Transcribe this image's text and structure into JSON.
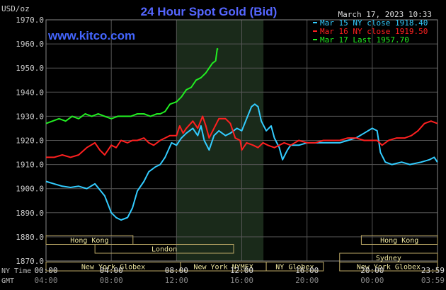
{
  "chart_data": {
    "type": "line",
    "title": "24 Hour Spot Gold (Bid)",
    "watermark": "www.kitco.com",
    "date": "March 17, 2023 10:33",
    "ylabel": "USD/oz",
    "ylim": [
      1870,
      1970
    ],
    "yticks": [
      "1970.0",
      "1960.0",
      "1950.0",
      "1940.0",
      "1930.0",
      "1920.0",
      "1910.0",
      "1900.0",
      "1890.0",
      "1880.0",
      "1870.0"
    ],
    "xlim": [
      0,
      24
    ],
    "grid": true,
    "legend_position": "top-right",
    "x_axes": [
      {
        "name": "NY Time",
        "ticks": [
          "00:00",
          "04:00",
          "08:00",
          "12:00",
          "16:00",
          "20:00",
          "23:59"
        ]
      },
      {
        "name": "GMT",
        "ticks": [
          "04:00",
          "08:00",
          "12:00",
          "16:00",
          "20:00",
          "00:00",
          "03:59"
        ]
      }
    ],
    "shaded_region_hours": [
      8,
      13.33
    ],
    "sessions": [
      {
        "label": "Hong Kong",
        "start": 0,
        "end": 5.33,
        "row": 0
      },
      {
        "label": "Hong Kong",
        "start": 19.33,
        "end": 24,
        "row": 0
      },
      {
        "label": "London",
        "start": 3,
        "end": 11.5,
        "row": 1
      },
      {
        "label": "Sydney",
        "start": 18,
        "end": 24,
        "row": 2
      },
      {
        "label": "New York Globex",
        "start": 0,
        "end": 8.25,
        "row": 3
      },
      {
        "label": "New York NYMEX",
        "start": 8.25,
        "end": 13.5,
        "row": 3
      },
      {
        "label": "NY Globex",
        "start": 13.5,
        "end": 17,
        "row": 3
      },
      {
        "label": "New York Globex",
        "start": 18,
        "end": 24,
        "row": 3
      }
    ],
    "series": [
      {
        "name": "Mar 15 NY close 1918.40",
        "color": "#33ccff",
        "points": [
          [
            0,
            1903
          ],
          [
            0.5,
            1902
          ],
          [
            1,
            1901
          ],
          [
            1.5,
            1900.5
          ],
          [
            2,
            1901
          ],
          [
            2.5,
            1900
          ],
          [
            3,
            1902
          ],
          [
            3.3,
            1899.5
          ],
          [
            3.6,
            1897
          ],
          [
            4,
            1890
          ],
          [
            4.3,
            1888
          ],
          [
            4.6,
            1887
          ],
          [
            5,
            1888
          ],
          [
            5.3,
            1892
          ],
          [
            5.6,
            1899
          ],
          [
            6,
            1903
          ],
          [
            6.3,
            1907
          ],
          [
            6.7,
            1909
          ],
          [
            7,
            1910
          ],
          [
            7.3,
            1913
          ],
          [
            7.7,
            1919
          ],
          [
            8,
            1918
          ],
          [
            8.3,
            1921
          ],
          [
            8.6,
            1923
          ],
          [
            9,
            1925
          ],
          [
            9.3,
            1922
          ],
          [
            9.5,
            1926
          ],
          [
            9.7,
            1920
          ],
          [
            10,
            1916
          ],
          [
            10.3,
            1922
          ],
          [
            10.6,
            1924
          ],
          [
            11,
            1922
          ],
          [
            11.3,
            1923
          ],
          [
            11.7,
            1925
          ],
          [
            12,
            1924
          ],
          [
            12.3,
            1929
          ],
          [
            12.6,
            1934
          ],
          [
            12.8,
            1935
          ],
          [
            13,
            1934
          ],
          [
            13.2,
            1928
          ],
          [
            13.5,
            1924
          ],
          [
            13.8,
            1926
          ],
          [
            14,
            1921
          ],
          [
            14.3,
            1917
          ],
          [
            14.5,
            1912
          ],
          [
            14.8,
            1916
          ],
          [
            15,
            1918
          ],
          [
            15.5,
            1918
          ],
          [
            16,
            1919
          ],
          [
            16.5,
            1919
          ],
          [
            17,
            1919
          ],
          [
            17.5,
            1919
          ],
          [
            18,
            1919
          ],
          [
            18.5,
            1920
          ],
          [
            19,
            1921
          ],
          [
            19.5,
            1923
          ],
          [
            20,
            1925
          ],
          [
            20.3,
            1924
          ],
          [
            20.5,
            1915
          ],
          [
            20.8,
            1911
          ],
          [
            21.2,
            1910
          ],
          [
            21.8,
            1911
          ],
          [
            22.3,
            1910
          ],
          [
            23,
            1911
          ],
          [
            23.5,
            1912
          ],
          [
            23.8,
            1913
          ],
          [
            23.99,
            1911
          ]
        ]
      },
      {
        "name": "Mar 16 NY close 1919.50",
        "color": "#ff2020",
        "points": [
          [
            0,
            1913
          ],
          [
            0.5,
            1913
          ],
          [
            1,
            1914
          ],
          [
            1.5,
            1913
          ],
          [
            2,
            1914
          ],
          [
            2.5,
            1917
          ],
          [
            3,
            1919
          ],
          [
            3.3,
            1916
          ],
          [
            3.6,
            1914
          ],
          [
            4,
            1918
          ],
          [
            4.3,
            1917
          ],
          [
            4.6,
            1920
          ],
          [
            5,
            1919
          ],
          [
            5.3,
            1920
          ],
          [
            5.6,
            1920
          ],
          [
            6,
            1921
          ],
          [
            6.3,
            1919
          ],
          [
            6.6,
            1918
          ],
          [
            7,
            1920
          ],
          [
            7.3,
            1921
          ],
          [
            7.6,
            1922
          ],
          [
            8,
            1922
          ],
          [
            8.2,
            1926
          ],
          [
            8.4,
            1923
          ],
          [
            8.6,
            1925
          ],
          [
            9,
            1928
          ],
          [
            9.3,
            1925
          ],
          [
            9.6,
            1930
          ],
          [
            9.8,
            1926
          ],
          [
            10,
            1921
          ],
          [
            10.3,
            1925
          ],
          [
            10.6,
            1929
          ],
          [
            11,
            1929
          ],
          [
            11.3,
            1927
          ],
          [
            11.6,
            1921
          ],
          [
            11.9,
            1920
          ],
          [
            12,
            1916
          ],
          [
            12.3,
            1919
          ],
          [
            12.7,
            1918
          ],
          [
            13,
            1917
          ],
          [
            13.3,
            1919
          ],
          [
            13.6,
            1918
          ],
          [
            14,
            1917
          ],
          [
            14.3,
            1918
          ],
          [
            14.6,
            1919
          ],
          [
            15,
            1918
          ],
          [
            15.5,
            1920
          ],
          [
            16,
            1919
          ],
          [
            16.5,
            1919
          ],
          [
            17,
            1920
          ],
          [
            17.5,
            1920
          ],
          [
            18,
            1920
          ],
          [
            18.5,
            1921
          ],
          [
            19,
            1921
          ],
          [
            19.5,
            1920
          ],
          [
            20,
            1920
          ],
          [
            20.3,
            1920
          ],
          [
            20.6,
            1918
          ],
          [
            21,
            1920
          ],
          [
            21.5,
            1921
          ],
          [
            22,
            1921
          ],
          [
            22.4,
            1922
          ],
          [
            22.8,
            1924
          ],
          [
            23.2,
            1927
          ],
          [
            23.6,
            1928
          ],
          [
            23.99,
            1927
          ]
        ]
      },
      {
        "name": "Mar 17 Last 1957.70",
        "color": "#22ee22",
        "points": [
          [
            0,
            1927
          ],
          [
            0.4,
            1928
          ],
          [
            0.8,
            1929
          ],
          [
            1.2,
            1928
          ],
          [
            1.6,
            1930
          ],
          [
            2,
            1929
          ],
          [
            2.4,
            1931
          ],
          [
            2.8,
            1930
          ],
          [
            3.2,
            1931
          ],
          [
            3.6,
            1930
          ],
          [
            4,
            1929
          ],
          [
            4.4,
            1930
          ],
          [
            4.8,
            1930
          ],
          [
            5.2,
            1930
          ],
          [
            5.6,
            1931
          ],
          [
            6,
            1931
          ],
          [
            6.4,
            1930
          ],
          [
            6.8,
            1931
          ],
          [
            7,
            1931
          ],
          [
            7.3,
            1932
          ],
          [
            7.6,
            1935
          ],
          [
            8,
            1936
          ],
          [
            8.3,
            1938
          ],
          [
            8.6,
            1941
          ],
          [
            8.9,
            1942
          ],
          [
            9.2,
            1945
          ],
          [
            9.5,
            1946
          ],
          [
            9.8,
            1948
          ],
          [
            10,
            1950
          ],
          [
            10.2,
            1952
          ],
          [
            10.4,
            1953
          ],
          [
            10.5,
            1958
          ],
          [
            10.55,
            1957.7
          ]
        ]
      }
    ]
  }
}
